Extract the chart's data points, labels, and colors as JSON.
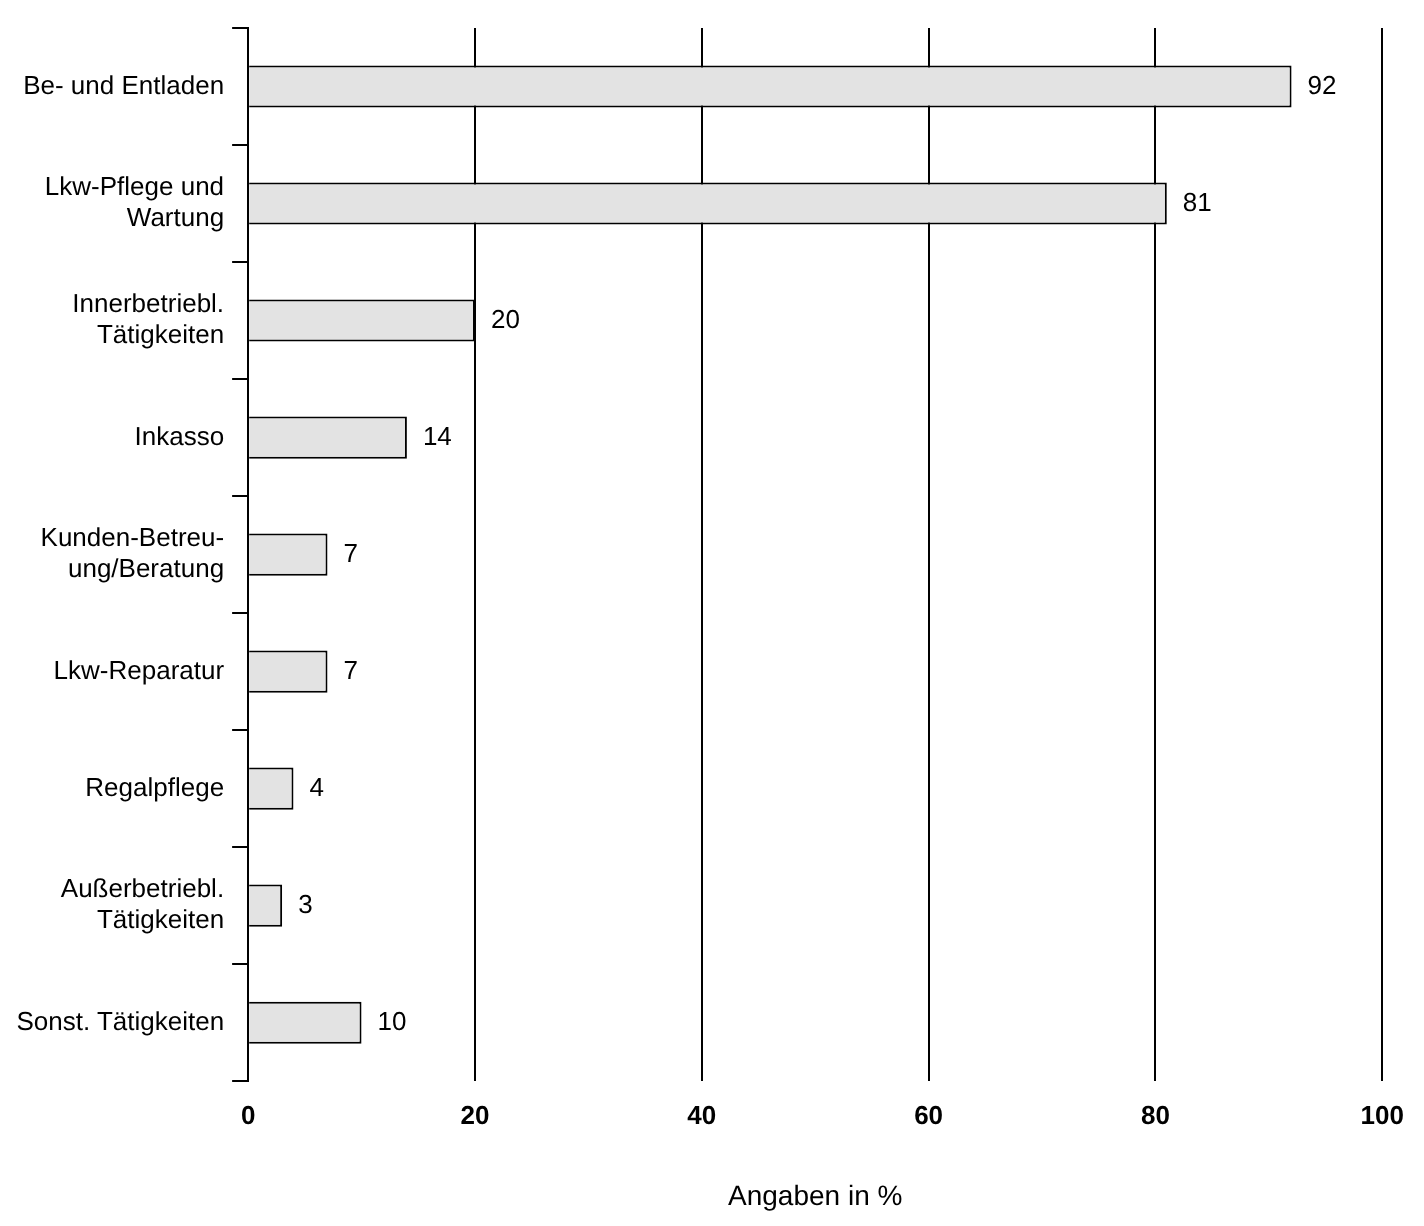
{
  "chart_data": {
    "type": "bar",
    "orientation": "horizontal",
    "xlabel": "Angaben in %",
    "categories": [
      "Be- und Entladen",
      "Lkw-Pflege und\nWartung",
      "Innerbetriebl.\nTätigkeiten",
      "Inkasso",
      "Kunden-Betreu-\nung/Beratung",
      "Lkw-Reparatur",
      "Regalpflege",
      "Außerbetriebl.\nTätigkeiten",
      "Sonst. Tätigkeiten"
    ],
    "values": [
      92,
      81,
      20,
      14,
      7,
      7,
      4,
      3,
      10
    ],
    "color": "#e3e3e3",
    "xlim": [
      0,
      100
    ],
    "xticks": [
      0,
      20,
      40,
      60,
      80,
      100
    ],
    "grid": "x",
    "legend": false,
    "data_labels": true
  }
}
